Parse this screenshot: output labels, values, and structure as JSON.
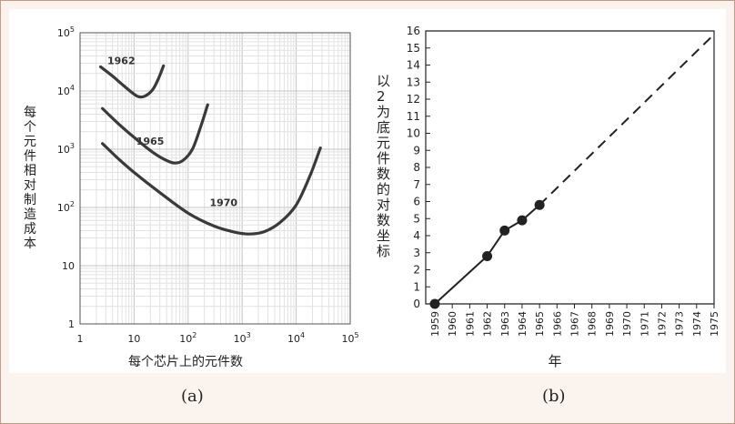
{
  "caption_a": "(a)",
  "caption_b": "(b)",
  "chart_data": [
    {
      "type": "line",
      "panel": "a",
      "xscale": "log",
      "yscale": "log",
      "xlim": [
        1,
        100000
      ],
      "ylim": [
        1,
        100000
      ],
      "xlabel": "每个芯片上的元件数",
      "ylabel": "每个元件相对制造成本",
      "grid": true,
      "x_ticks": [
        {
          "value": 1,
          "label": "1"
        },
        {
          "value": 10,
          "label": "10"
        },
        {
          "value": 100,
          "label": "10",
          "sup": "2"
        },
        {
          "value": 1000,
          "label": "10",
          "sup": "3"
        },
        {
          "value": 10000,
          "label": "10",
          "sup": "4"
        },
        {
          "value": 100000,
          "label": "10",
          "sup": "5"
        }
      ],
      "y_ticks": [
        {
          "value": 1,
          "label": "1"
        },
        {
          "value": 10,
          "label": "10"
        },
        {
          "value": 100,
          "label": "10",
          "sup": "2"
        },
        {
          "value": 1000,
          "label": "10",
          "sup": "3"
        },
        {
          "value": 10000,
          "label": "10",
          "sup": "4"
        },
        {
          "value": 100000,
          "label": "10",
          "sup": "5"
        }
      ],
      "series": [
        {
          "name": "1962",
          "x": [
            2.4,
            4,
            6,
            9,
            12,
            16,
            22,
            28,
            35
          ],
          "y": [
            26000,
            18000,
            13000,
            9500,
            8000,
            8200,
            10500,
            16000,
            27000
          ],
          "label_at": [
            3.2,
            29000
          ]
        },
        {
          "name": "1965",
          "x": [
            2.6,
            5,
            10,
            20,
            35,
            55,
            80,
            120,
            170,
            230
          ],
          "y": [
            5000,
            2800,
            1600,
            950,
            680,
            580,
            640,
            1000,
            2400,
            5800
          ],
          "label_at": [
            11,
            1200
          ]
        },
        {
          "name": "1970",
          "x": [
            2.6,
            5,
            10,
            30,
            100,
            300,
            700,
            1300,
            2500,
            5000,
            10000,
            18000,
            28000
          ],
          "y": [
            1250,
            700,
            400,
            180,
            80,
            48,
            38,
            35,
            38,
            55,
            110,
            350,
            1050
          ],
          "label_at": [
            250,
            105
          ]
        }
      ]
    },
    {
      "type": "line",
      "panel": "b",
      "xlabel": "年",
      "ylabel": "以2为底元件数的对数坐标",
      "ylim": [
        0,
        16
      ],
      "x_categories": [
        "1959",
        "1960",
        "1961",
        "1962",
        "1963",
        "1964",
        "1965",
        "1966",
        "1967",
        "1968",
        "1969",
        "1970",
        "1971",
        "1972",
        "1973",
        "1974",
        "1975"
      ],
      "y_ticks": [
        "0",
        "1",
        "2",
        "3",
        "4",
        "5",
        "6",
        "7",
        "8",
        "9",
        "10",
        "11",
        "12",
        "13",
        "14",
        "15",
        "16"
      ],
      "series": [
        {
          "style": "solid",
          "points": [
            [
              1959,
              0
            ],
            [
              1962,
              2.8
            ],
            [
              1963,
              4.3
            ],
            [
              1964,
              4.9
            ],
            [
              1965,
              5.8
            ]
          ]
        },
        {
          "style": "dashed",
          "points": [
            [
              1965,
              5.8
            ],
            [
              1975,
              15.8
            ]
          ]
        }
      ],
      "markers": [
        [
          1959,
          0
        ],
        [
          1962,
          2.8
        ],
        [
          1963,
          4.3
        ],
        [
          1964,
          4.9
        ],
        [
          1965,
          5.8
        ]
      ]
    }
  ]
}
